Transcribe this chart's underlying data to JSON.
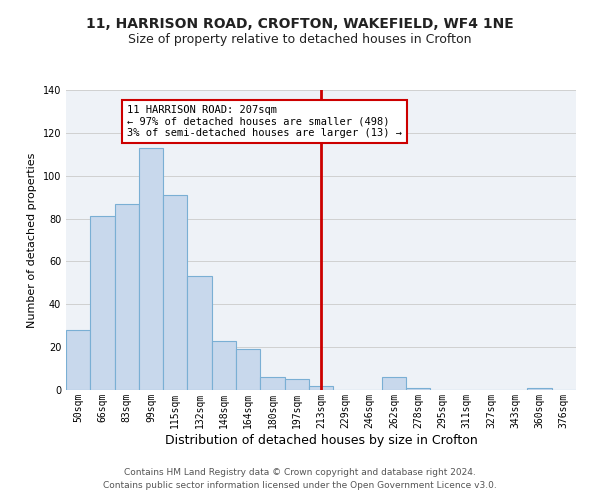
{
  "title1": "11, HARRISON ROAD, CROFTON, WAKEFIELD, WF4 1NE",
  "title2": "Size of property relative to detached houses in Crofton",
  "xlabel": "Distribution of detached houses by size in Crofton",
  "ylabel": "Number of detached properties",
  "bar_color": "#c8d8ec",
  "bar_edge_color": "#7aafd4",
  "bin_labels": [
    "50sqm",
    "66sqm",
    "83sqm",
    "99sqm",
    "115sqm",
    "132sqm",
    "148sqm",
    "164sqm",
    "180sqm",
    "197sqm",
    "213sqm",
    "229sqm",
    "246sqm",
    "262sqm",
    "278sqm",
    "295sqm",
    "311sqm",
    "327sqm",
    "343sqm",
    "360sqm",
    "376sqm"
  ],
  "bar_heights": [
    28,
    81,
    87,
    113,
    91,
    53,
    23,
    19,
    6,
    5,
    2,
    0,
    0,
    6,
    1,
    0,
    0,
    0,
    0,
    1,
    0
  ],
  "vline_x": 10,
  "vline_color": "#cc0000",
  "annotation_text": "11 HARRISON ROAD: 207sqm\n← 97% of detached houses are smaller (498)\n3% of semi-detached houses are larger (13) →",
  "annotation_box_color": "#ffffff",
  "annotation_box_edge": "#cc0000",
  "ylim": [
    0,
    140
  ],
  "yticks": [
    0,
    20,
    40,
    60,
    80,
    100,
    120,
    140
  ],
  "grid_color": "#d0d0d0",
  "footer1": "Contains HM Land Registry data © Crown copyright and database right 2024.",
  "footer2": "Contains public sector information licensed under the Open Government Licence v3.0.",
  "bg_color": "#eef2f7",
  "fig_bg_color": "#ffffff",
  "title1_fontsize": 10,
  "title2_fontsize": 9,
  "xlabel_fontsize": 9,
  "ylabel_fontsize": 8,
  "tick_fontsize": 7,
  "annotation_fontsize": 7.5,
  "footer_fontsize": 6.5
}
